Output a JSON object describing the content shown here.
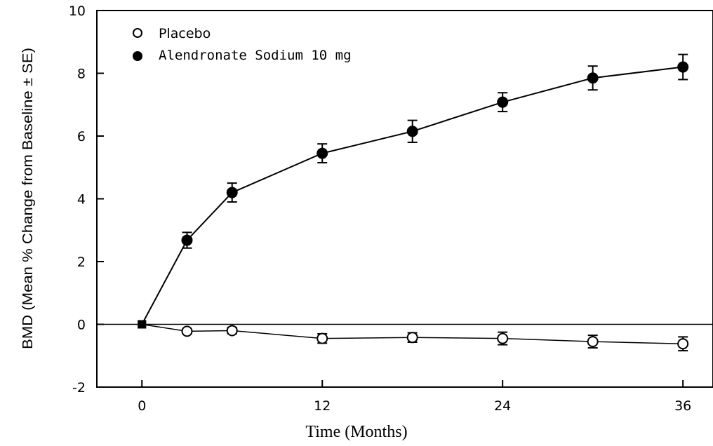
{
  "chart_data": {
    "type": "line",
    "xlabel": "Time (Months)",
    "ylabel": "BMD (Mean % Change from Baseline ± SE)",
    "xlim": [
      -3,
      38
    ],
    "ylim": [
      -2,
      10
    ],
    "xticks": [
      0,
      12,
      24,
      36
    ],
    "xtick_labels": [
      "0",
      "12",
      "24",
      "36"
    ],
    "yticks": [
      -2,
      0,
      2,
      4,
      6,
      8,
      10
    ],
    "ytick_labels": [
      "-2",
      "0",
      "2",
      "4",
      "6",
      "8",
      "10"
    ],
    "legend_position": "top-left",
    "grid": false,
    "series": [
      {
        "name": "Placebo",
        "marker": "open-circle",
        "color": "#000000",
        "x": [
          0,
          3,
          6,
          12,
          18,
          24,
          30,
          36
        ],
        "y": [
          0,
          -0.22,
          -0.2,
          -0.45,
          -0.42,
          -0.45,
          -0.55,
          -0.62
        ],
        "error": [
          0,
          0.08,
          0.1,
          0.15,
          0.15,
          0.2,
          0.2,
          0.22
        ]
      },
      {
        "name": "Alendronate Sodium 10 mg",
        "marker": "filled-circle",
        "color": "#000000",
        "x": [
          0,
          3,
          6,
          12,
          18,
          24,
          30,
          36
        ],
        "y": [
          0,
          2.68,
          4.2,
          5.45,
          6.15,
          7.08,
          7.85,
          8.2
        ],
        "error": [
          0,
          0.25,
          0.3,
          0.3,
          0.35,
          0.3,
          0.38,
          0.4
        ]
      }
    ]
  }
}
